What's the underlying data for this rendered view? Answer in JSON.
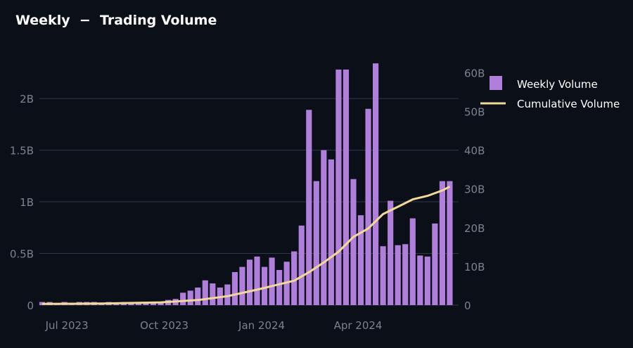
{
  "chart_data": {
    "type": "bar",
    "title": "Weekly  −  Trading Volume",
    "xlabel": "",
    "ylabel": "",
    "x_ticks": [
      "Jul 2023",
      "Oct 2023",
      "Jan 2024",
      "Apr 2024"
    ],
    "y_left": {
      "ticks": [
        "0",
        "0.5B",
        "1B",
        "1.5B",
        "2B"
      ],
      "tick_values": [
        0,
        0.5,
        1,
        1.5,
        2
      ],
      "range": [
        0,
        2.3
      ],
      "unit": "B"
    },
    "y_right": {
      "ticks": [
        "0",
        "10B",
        "20B",
        "30B",
        "40B",
        "50B",
        "60B"
      ],
      "tick_values": [
        0,
        10,
        20,
        30,
        40,
        50,
        60
      ],
      "range": [
        0,
        61.35
      ],
      "unit": "B"
    },
    "grid": true,
    "legend_position": "top-right",
    "colors": {
      "bar": "#b07fdc",
      "line": "#f2d99a",
      "grid": "#2e3a4b",
      "background": "#0b0f17"
    },
    "series": [
      {
        "name": "Weekly Volume",
        "type": "bar",
        "axis": "left",
        "x": [
          "2023-06-05",
          "2023-06-12",
          "2023-06-19",
          "2023-06-26",
          "2023-07-03",
          "2023-07-10",
          "2023-07-17",
          "2023-07-24",
          "2023-07-31",
          "2023-08-07",
          "2023-08-14",
          "2023-08-21",
          "2023-08-28",
          "2023-09-04",
          "2023-09-11",
          "2023-09-18",
          "2023-09-25",
          "2023-10-02",
          "2023-10-09",
          "2023-10-16",
          "2023-10-23",
          "2023-10-30",
          "2023-11-06",
          "2023-11-13",
          "2023-11-20",
          "2023-11-27",
          "2023-12-04",
          "2023-12-11",
          "2023-12-18",
          "2023-12-25",
          "2024-01-01",
          "2024-01-08",
          "2024-01-15",
          "2024-01-22",
          "2024-01-29",
          "2024-02-05",
          "2024-02-12",
          "2024-02-19",
          "2024-02-26",
          "2024-03-04",
          "2024-03-11",
          "2024-03-18",
          "2024-03-25",
          "2024-04-01",
          "2024-04-08",
          "2024-04-15",
          "2024-04-22",
          "2024-04-29",
          "2024-05-06",
          "2024-05-13",
          "2024-05-20",
          "2024-05-27",
          "2024-06-03",
          "2024-06-10",
          "2024-06-17",
          "2024-06-24"
        ],
        "values": [
          0.03,
          0.03,
          0.02,
          0.03,
          0.02,
          0.03,
          0.03,
          0.03,
          0.02,
          0.03,
          0.02,
          0.03,
          0.03,
          0.03,
          0.02,
          0.02,
          0.03,
          0.05,
          0.06,
          0.12,
          0.14,
          0.17,
          0.24,
          0.21,
          0.17,
          0.2,
          0.32,
          0.37,
          0.44,
          0.47,
          0.37,
          0.46,
          0.34,
          0.42,
          0.52,
          0.77,
          1.89,
          1.2,
          1.5,
          1.41,
          2.28,
          2.28,
          1.22,
          0.87,
          1.9,
          2.34,
          0.57,
          1.01,
          0.58,
          0.59,
          0.84,
          0.48,
          0.47,
          0.79,
          1.2,
          1.2
        ]
      },
      {
        "name": "Cumulative Volume",
        "type": "line",
        "axis": "right",
        "x": [
          "2023-06-05",
          "2023-07-31",
          "2023-09-25",
          "2023-10-30",
          "2023-11-27",
          "2023-12-25",
          "2024-01-29",
          "2024-02-12",
          "2024-02-26",
          "2024-03-11",
          "2024-03-25",
          "2024-04-08",
          "2024-04-22",
          "2024-05-06",
          "2024-05-20",
          "2024-06-03",
          "2024-06-17",
          "2024-06-24"
        ],
        "values": [
          0.3,
          0.4,
          0.7,
          1.3,
          2.3,
          4.0,
          6.3,
          8.5,
          11.0,
          13.8,
          17.6,
          19.8,
          23.5,
          25.4,
          27.3,
          28.2,
          29.6,
          30.6
        ]
      }
    ]
  }
}
